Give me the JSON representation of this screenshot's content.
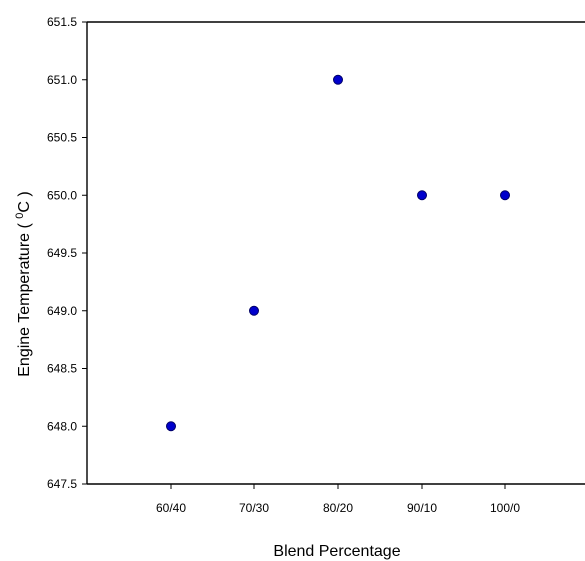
{
  "chart_data": {
    "type": "scatter",
    "title": "",
    "xlabel": "Blend Percentage",
    "ylabel_prefix": "Engine Temperature  (  ",
    "ylabel_unit_sup": "0",
    "ylabel_suffix": "C  )",
    "categories": [
      "60/40",
      "70/30",
      "80/20",
      "90/10",
      "100/0"
    ],
    "values": [
      648.0,
      649.0,
      651.0,
      650.0,
      650.0
    ],
    "ylim": [
      647.5,
      651.5
    ],
    "yticks": [
      "647.5",
      "648.0",
      "648.5",
      "649.0",
      "649.5",
      "650.0",
      "650.5",
      "651.0",
      "651.5"
    ],
    "grid": false,
    "marker_color": "#0000cc"
  }
}
